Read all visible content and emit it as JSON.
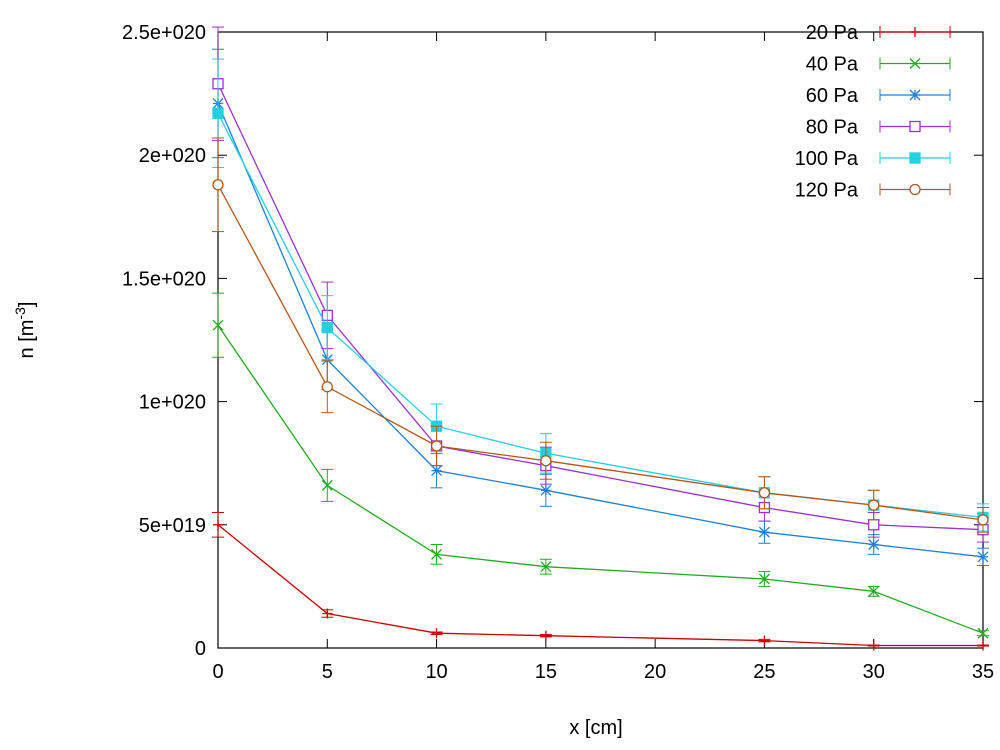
{
  "chart_data": {
    "type": "line",
    "title": "",
    "xlabel": "x [cm]",
    "ylabel_main": "n [m",
    "ylabel_sup": "-3",
    "ylabel_close": "]",
    "xlim": [
      0,
      35
    ],
    "ylim": [
      0,
      2.5e+20
    ],
    "x_ticks": [
      0,
      5,
      10,
      15,
      20,
      25,
      30,
      35
    ],
    "x_tick_labels": [
      "0",
      "5",
      "10",
      "15",
      "20",
      "25",
      "30",
      "35"
    ],
    "y_ticks": [
      0,
      5e+19,
      1e+20,
      1.5e+20,
      2e+20,
      2.5e+20
    ],
    "y_tick_labels": [
      "0",
      "5e+019",
      "1e+020",
      "1.5e+020",
      "2e+020",
      "2.5e+020"
    ],
    "grid": false,
    "legend_position": "top-right",
    "x": [
      0,
      5,
      10,
      15,
      25,
      30,
      35
    ],
    "series": [
      {
        "name": "20 Pa",
        "color": "#cc0000",
        "marker": "plus",
        "values": [
          5e+19,
          1.4e+19,
          6e+18,
          5e+18,
          3e+18,
          1e+18,
          1e+18
        ],
        "errors": [
          5e+18,
          1.5e+18,
          5e+17,
          5e+17,
          5e+17,
          2e+17,
          2e+17
        ]
      },
      {
        "name": "40 Pa",
        "color": "#22aa22",
        "marker": "cross",
        "values": [
          1.31e+20,
          6.6e+19,
          3.8e+19,
          3.3e+19,
          2.8e+19,
          2.3e+19,
          6e+18
        ],
        "errors": [
          1.3e+19,
          6.5e+18,
          4e+18,
          3e+18,
          3e+18,
          2e+18,
          1e+18
        ]
      },
      {
        "name": "60 Pa",
        "color": "#1e7fd6",
        "marker": "star",
        "values": [
          2.21e+20,
          1.17e+20,
          7.2e+19,
          6.4e+19,
          4.7e+19,
          4.2e+19,
          3.7e+19
        ],
        "errors": [
          2.2e+19,
          1.2e+19,
          7e+18,
          6.5e+18,
          4.5e+18,
          4e+18,
          3.5e+18
        ]
      },
      {
        "name": "80 Pa",
        "color": "#9b30d0",
        "marker": "square-open",
        "values": [
          2.29e+20,
          1.35e+20,
          8.2e+19,
          7.4e+19,
          5.7e+19,
          5e+19,
          4.8e+19
        ],
        "errors": [
          2.3e+19,
          1.35e+19,
          8e+18,
          7.5e+18,
          5.5e+18,
          5e+18,
          5e+18
        ]
      },
      {
        "name": "100 Pa",
        "color": "#22d0e0",
        "marker": "square-filled",
        "values": [
          2.17e+20,
          1.3e+20,
          9e+19,
          7.9e+19,
          6.3e+19,
          5.8e+19,
          5.3e+19
        ],
        "errors": [
          2.2e+19,
          1.3e+19,
          9e+18,
          8e+18,
          6.5e+18,
          6e+18,
          5.5e+18
        ]
      },
      {
        "name": "120 Pa",
        "color": "#b5561a",
        "marker": "circle-open",
        "values": [
          1.88e+20,
          1.06e+20,
          8.2e+19,
          7.6e+19,
          6.3e+19,
          5.8e+19,
          5.2e+19
        ],
        "errors": [
          1.9e+19,
          1.05e+19,
          8e+18,
          7.5e+18,
          6.5e+18,
          6e+18,
          5e+18
        ]
      }
    ]
  }
}
